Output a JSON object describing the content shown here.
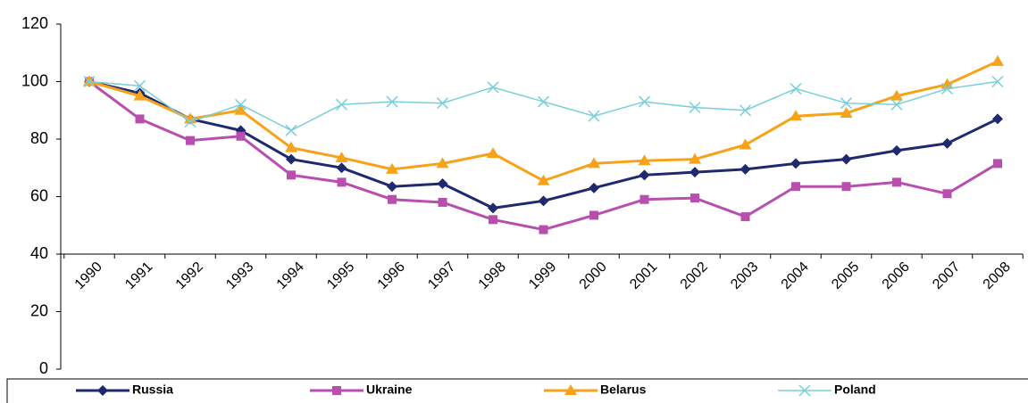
{
  "chart_data": {
    "type": "line",
    "categories": [
      "1990",
      "1991",
      "1992",
      "1993",
      "1994",
      "1995",
      "1996",
      "1997",
      "1998",
      "1999",
      "2000",
      "2001",
      "2002",
      "2003",
      "2004",
      "2005",
      "2006",
      "2007",
      "2008"
    ],
    "series": [
      {
        "name": "Russia",
        "color": "#1f2a6e",
        "marker": "diamond",
        "values": [
          100,
          96,
          87,
          83,
          73,
          70,
          63.5,
          64.5,
          56,
          58.5,
          63,
          67.5,
          68.5,
          69.5,
          71.5,
          73,
          76,
          78.5,
          87
        ]
      },
      {
        "name": "Ukraine",
        "color": "#b84fae",
        "marker": "square",
        "values": [
          100,
          87,
          79.5,
          81,
          67.5,
          65,
          59,
          58,
          52,
          48.5,
          53.5,
          59,
          59.5,
          53,
          63.5,
          63.5,
          65,
          61,
          71.5
        ]
      },
      {
        "name": "Belarus",
        "color": "#f7a21b",
        "marker": "triangle",
        "values": [
          100,
          95,
          87,
          90,
          77,
          73.5,
          69.5,
          71.5,
          75,
          65.5,
          71.5,
          72.5,
          73,
          78,
          88,
          89,
          95,
          99,
          107
        ]
      },
      {
        "name": "Poland",
        "color": "#79cfd8",
        "marker": "x",
        "values": [
          100,
          98.5,
          86,
          92,
          83,
          92,
          93,
          92.5,
          98,
          93,
          88,
          93,
          91,
          90,
          97.5,
          92.5,
          92,
          97.5,
          100
        ]
      }
    ],
    "ylim": [
      0,
      120
    ],
    "yticks": [
      0,
      20,
      40,
      60,
      80,
      100,
      120
    ],
    "x_axis_crosses_at": 40,
    "legend": "bottom",
    "grid": false
  }
}
